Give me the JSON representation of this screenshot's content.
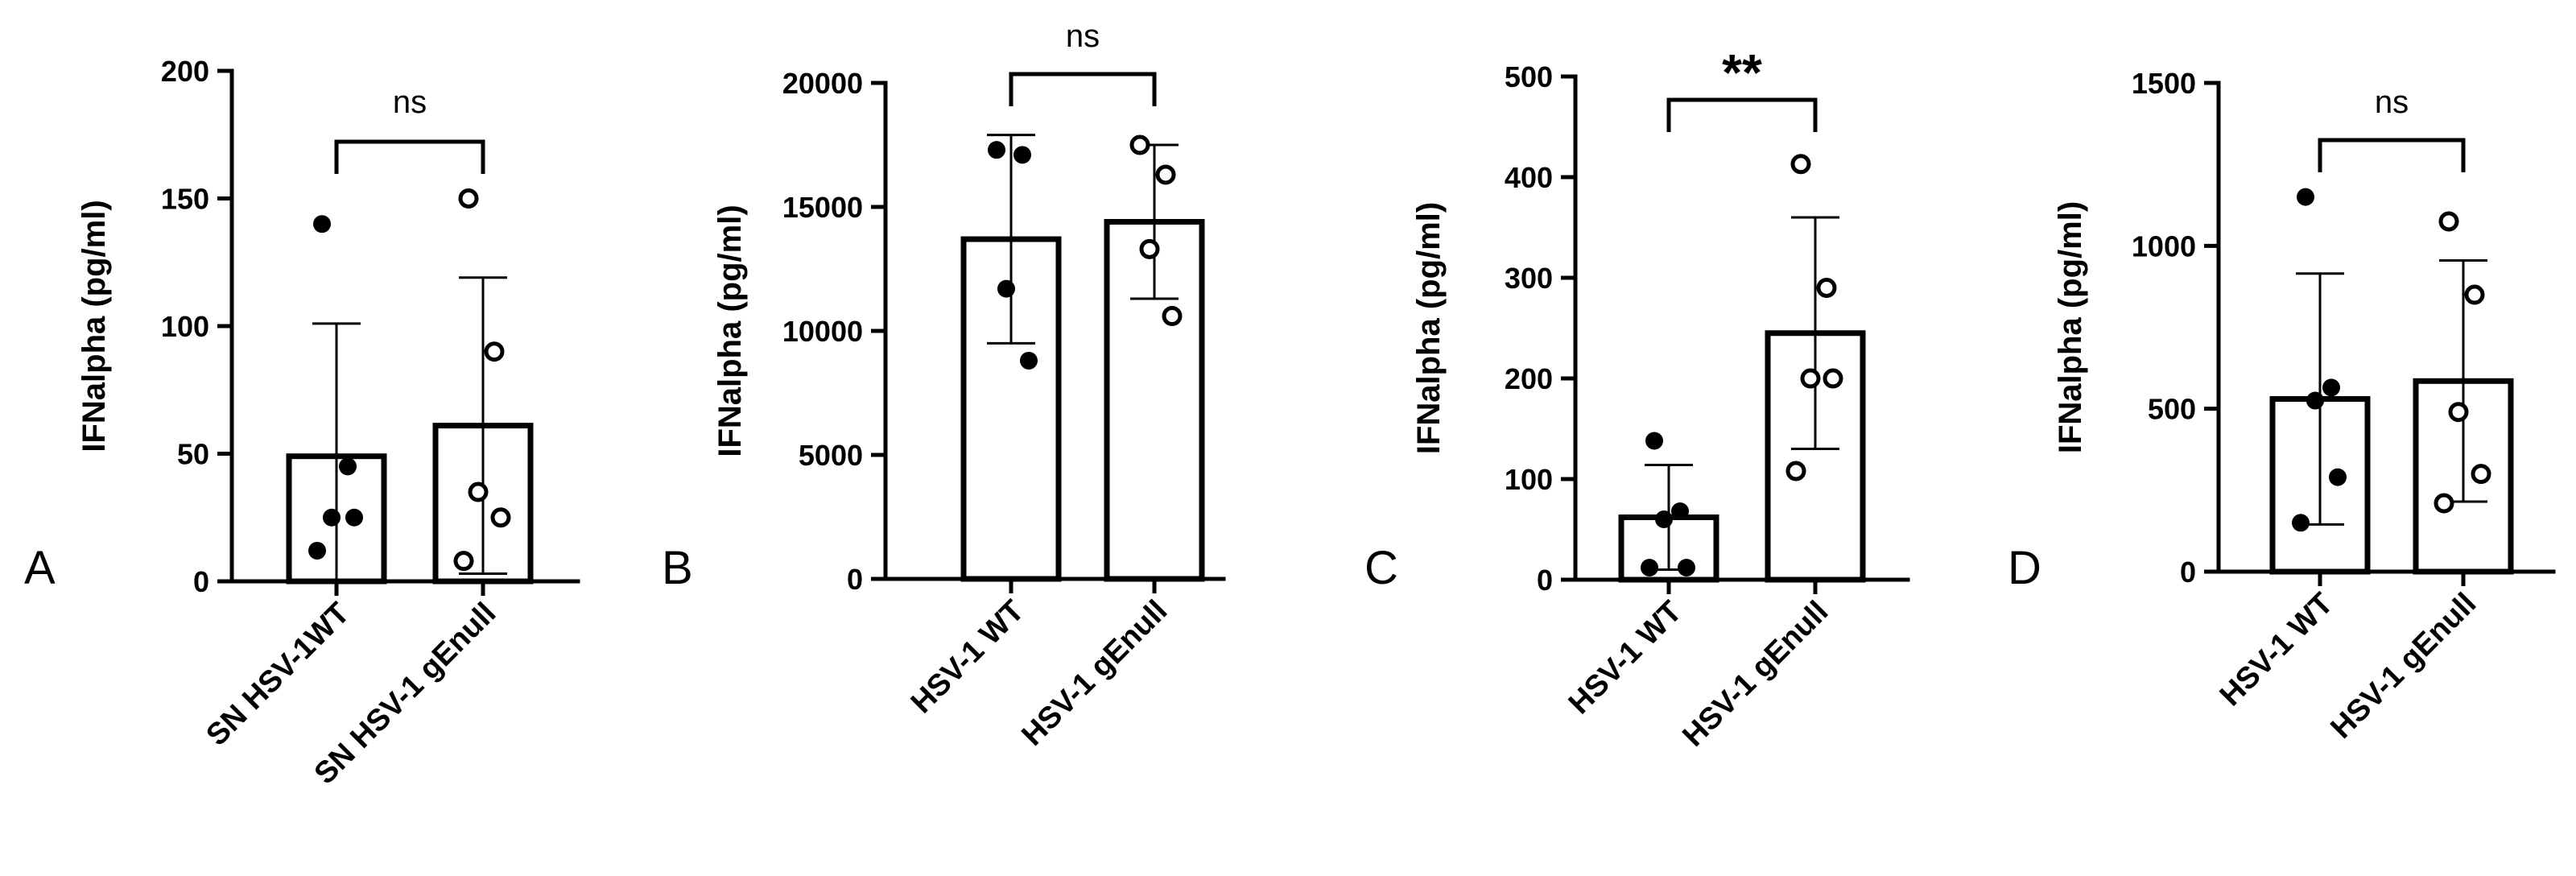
{
  "chart_data": [
    {
      "type": "bar",
      "panel_letter": "A",
      "ylabel": "IFNalpha (pg/ml)",
      "ylim": [
        0,
        200
      ],
      "yticks": [
        0,
        50,
        100,
        150,
        200
      ],
      "categories": [
        "SN HSV-1WT",
        "SN HSV-1 gEnull"
      ],
      "means": [
        49,
        61
      ],
      "sd": [
        52,
        58
      ],
      "points": [
        [
          140,
          45,
          25,
          25,
          12
        ],
        [
          150,
          90,
          35,
          25,
          8
        ]
      ],
      "point_style": [
        "filled",
        "open"
      ],
      "significance": "ns"
    },
    {
      "type": "bar",
      "panel_letter": "B",
      "ylabel": "IFNalpha (pg/ml)",
      "ylim": [
        0,
        20000
      ],
      "yticks": [
        0,
        5000,
        10000,
        15000,
        20000
      ],
      "categories": [
        "HSV-1 WT",
        "HSV-1 gEnull"
      ],
      "means": [
        13700,
        14400
      ],
      "sd": [
        4200,
        3100
      ],
      "points": [
        [
          17300,
          17100,
          11700,
          8800
        ],
        [
          17500,
          16300,
          13300,
          10600
        ]
      ],
      "point_style": [
        "filled",
        "open"
      ],
      "significance": "ns"
    },
    {
      "type": "bar",
      "panel_letter": "C",
      "ylabel": "IFNalpha (pg/ml)",
      "ylim": [
        0,
        500
      ],
      "yticks": [
        0,
        100,
        200,
        300,
        400,
        500
      ],
      "categories": [
        "HSV-1 WT",
        "HSV-1 gEnull"
      ],
      "means": [
        62,
        245
      ],
      "sd": [
        52,
        115
      ],
      "points": [
        [
          138,
          68,
          60,
          12,
          12
        ],
        [
          413,
          290,
          200,
          200,
          108
        ]
      ],
      "point_style": [
        "filled",
        "open"
      ],
      "significance": "**"
    },
    {
      "type": "bar",
      "panel_letter": "D",
      "ylabel": "IFNalpha (pg/ml)",
      "ylim": [
        0,
        1500
      ],
      "yticks": [
        0,
        500,
        1000,
        1500
      ],
      "categories": [
        "HSV-1 WT",
        "HSV-1 gEnull"
      ],
      "means": [
        530,
        585
      ],
      "sd": [
        385,
        370
      ],
      "points": [
        [
          1150,
          565,
          525,
          290,
          150
        ],
        [
          1075,
          850,
          490,
          300,
          210
        ]
      ],
      "point_style": [
        "filled",
        "open"
      ],
      "significance": "ns"
    }
  ]
}
